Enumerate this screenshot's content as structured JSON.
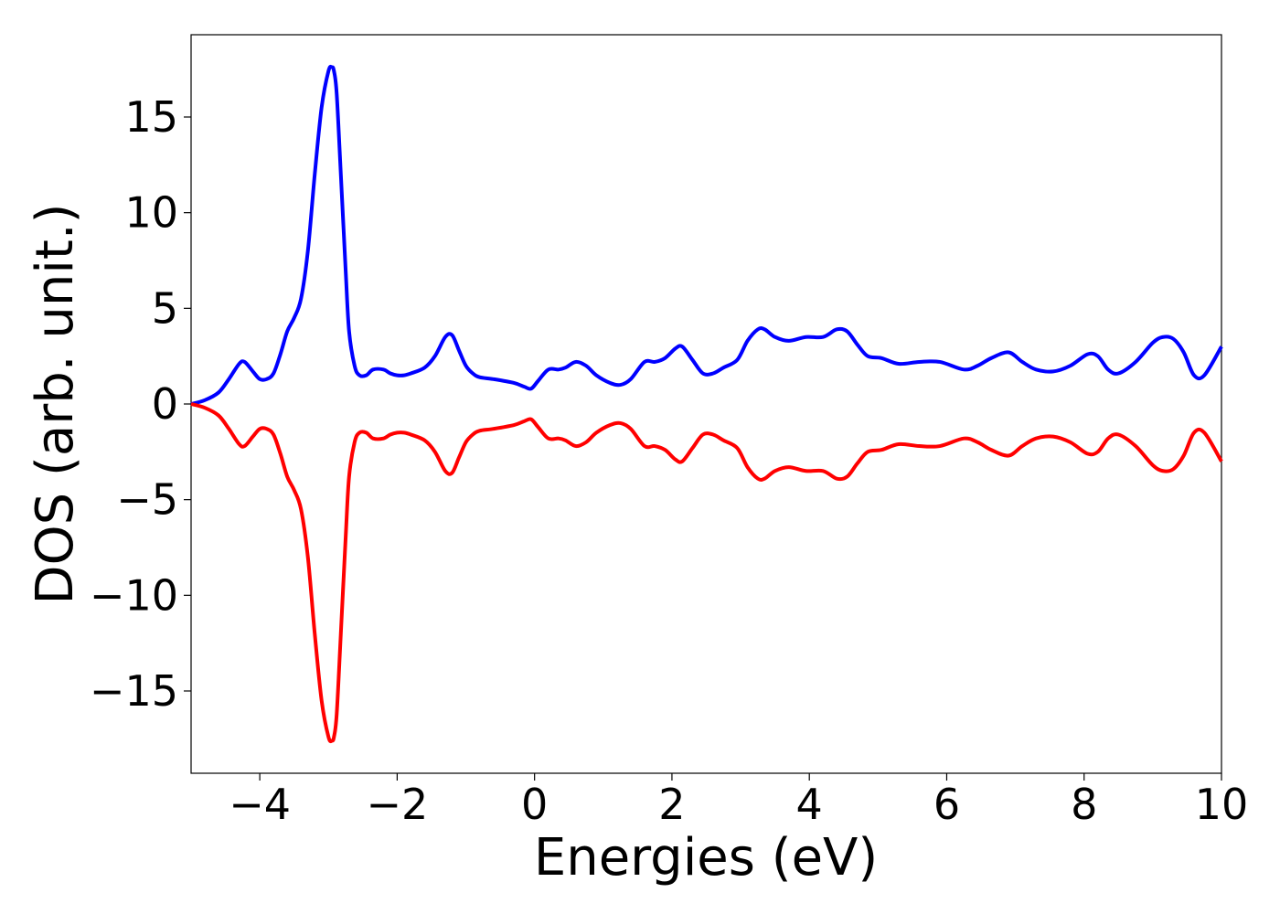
{
  "chart_data": {
    "type": "line",
    "title": "",
    "xlabel": "Energies (eV)",
    "ylabel": "DOS (arb. unit.)",
    "xlim": [
      -5,
      10
    ],
    "ylim": [
      -19.3,
      19.3
    ],
    "grid": false,
    "legend": "none",
    "x_ticks": [
      -4,
      -2,
      0,
      2,
      4,
      6,
      8,
      10
    ],
    "x_tick_labels": [
      "−4",
      "−2",
      "0",
      "2",
      "4",
      "6",
      "8",
      "10"
    ],
    "y_ticks": [
      -15,
      -10,
      -5,
      0,
      5,
      10,
      15
    ],
    "y_tick_labels": [
      "−15",
      "−10",
      "−5",
      "0",
      "5",
      "10",
      "15"
    ],
    "series": [
      {
        "color": "#0000ff",
        "x": [
          -5.0,
          -4.8,
          -4.6,
          -4.45,
          -4.3,
          -4.22,
          -4.1,
          -4.0,
          -3.9,
          -3.8,
          -3.7,
          -3.6,
          -3.5,
          -3.4,
          -3.3,
          -3.2,
          -3.1,
          -3.0,
          -2.95,
          -2.92,
          -2.88,
          -2.82,
          -2.75,
          -2.7,
          -2.62,
          -2.55,
          -2.45,
          -2.35,
          -2.2,
          -2.1,
          -2.0,
          -1.9,
          -1.8,
          -1.6,
          -1.45,
          -1.3,
          -1.2,
          -1.1,
          -1.0,
          -0.9,
          -0.8,
          -0.6,
          -0.3,
          -0.15,
          -0.05,
          0.05,
          0.2,
          0.35,
          0.45,
          0.6,
          0.75,
          0.9,
          1.1,
          1.25,
          1.4,
          1.6,
          1.75,
          1.9,
          2.05,
          2.15,
          2.3,
          2.45,
          2.6,
          2.75,
          2.95,
          3.1,
          3.25,
          3.35,
          3.5,
          3.7,
          3.95,
          4.2,
          4.4,
          4.55,
          4.7,
          4.85,
          5.05,
          5.3,
          5.6,
          5.9,
          6.25,
          6.45,
          6.65,
          6.9,
          7.1,
          7.3,
          7.55,
          7.8,
          8.05,
          8.2,
          8.35,
          8.5,
          8.75,
          9.0,
          9.15,
          9.3,
          9.45,
          9.6,
          9.75,
          10.0
        ],
        "y": [
          0.0,
          0.2,
          0.6,
          1.3,
          2.1,
          2.2,
          1.7,
          1.3,
          1.3,
          1.6,
          2.6,
          3.8,
          4.5,
          5.5,
          8.0,
          12.0,
          15.5,
          17.4,
          17.6,
          17.4,
          16.2,
          12.0,
          7.0,
          3.8,
          2.0,
          1.5,
          1.5,
          1.8,
          1.8,
          1.6,
          1.5,
          1.5,
          1.6,
          1.9,
          2.5,
          3.5,
          3.6,
          2.8,
          2.0,
          1.6,
          1.4,
          1.3,
          1.1,
          0.9,
          0.8,
          1.2,
          1.8,
          1.8,
          1.9,
          2.2,
          2.0,
          1.5,
          1.1,
          1.0,
          1.3,
          2.2,
          2.2,
          2.4,
          2.9,
          3.0,
          2.3,
          1.6,
          1.6,
          1.9,
          2.3,
          3.3,
          3.9,
          3.9,
          3.5,
          3.3,
          3.5,
          3.5,
          3.9,
          3.8,
          3.1,
          2.5,
          2.4,
          2.1,
          2.2,
          2.2,
          1.8,
          2.0,
          2.4,
          2.7,
          2.2,
          1.8,
          1.7,
          2.0,
          2.6,
          2.5,
          1.8,
          1.6,
          2.2,
          3.2,
          3.5,
          3.4,
          2.7,
          1.5,
          1.5,
          3.0
        ]
      },
      {
        "color": "#ff0000",
        "x": [
          -5.0,
          -4.8,
          -4.6,
          -4.45,
          -4.3,
          -4.22,
          -4.1,
          -4.0,
          -3.9,
          -3.8,
          -3.7,
          -3.6,
          -3.5,
          -3.4,
          -3.3,
          -3.2,
          -3.1,
          -3.0,
          -2.95,
          -2.92,
          -2.88,
          -2.82,
          -2.75,
          -2.7,
          -2.62,
          -2.55,
          -2.45,
          -2.35,
          -2.2,
          -2.1,
          -2.0,
          -1.9,
          -1.8,
          -1.6,
          -1.45,
          -1.3,
          -1.2,
          -1.1,
          -1.0,
          -0.9,
          -0.8,
          -0.6,
          -0.3,
          -0.15,
          -0.05,
          0.05,
          0.2,
          0.35,
          0.45,
          0.6,
          0.75,
          0.9,
          1.1,
          1.25,
          1.4,
          1.6,
          1.75,
          1.9,
          2.05,
          2.15,
          2.3,
          2.45,
          2.6,
          2.75,
          2.95,
          3.1,
          3.25,
          3.35,
          3.5,
          3.7,
          3.95,
          4.2,
          4.4,
          4.55,
          4.7,
          4.85,
          5.05,
          5.3,
          5.6,
          5.9,
          6.25,
          6.45,
          6.65,
          6.9,
          7.1,
          7.3,
          7.55,
          7.8,
          8.05,
          8.2,
          8.35,
          8.5,
          8.75,
          9.0,
          9.15,
          9.3,
          9.45,
          9.6,
          9.75,
          10.0
        ],
        "y": [
          0.0,
          -0.2,
          -0.6,
          -1.3,
          -2.1,
          -2.2,
          -1.7,
          -1.3,
          -1.3,
          -1.6,
          -2.6,
          -3.8,
          -4.5,
          -5.5,
          -8.0,
          -12.0,
          -15.5,
          -17.4,
          -17.6,
          -17.4,
          -16.2,
          -12.0,
          -7.0,
          -3.8,
          -2.0,
          -1.5,
          -1.5,
          -1.8,
          -1.8,
          -1.6,
          -1.5,
          -1.5,
          -1.6,
          -1.9,
          -2.5,
          -3.5,
          -3.6,
          -2.8,
          -2.0,
          -1.6,
          -1.4,
          -1.3,
          -1.1,
          -0.9,
          -0.8,
          -1.2,
          -1.8,
          -1.8,
          -1.9,
          -2.2,
          -2.0,
          -1.5,
          -1.1,
          -1.0,
          -1.3,
          -2.2,
          -2.2,
          -2.4,
          -2.9,
          -3.0,
          -2.3,
          -1.6,
          -1.6,
          -1.9,
          -2.3,
          -3.3,
          -3.9,
          -3.9,
          -3.5,
          -3.3,
          -3.5,
          -3.5,
          -3.9,
          -3.8,
          -3.1,
          -2.5,
          -2.4,
          -2.1,
          -2.2,
          -2.2,
          -1.8,
          -2.0,
          -2.4,
          -2.7,
          -2.2,
          -1.8,
          -1.7,
          -2.0,
          -2.6,
          -2.5,
          -1.8,
          -1.6,
          -2.2,
          -3.2,
          -3.5,
          -3.4,
          -2.7,
          -1.5,
          -1.5,
          -3.0
        ]
      }
    ]
  }
}
